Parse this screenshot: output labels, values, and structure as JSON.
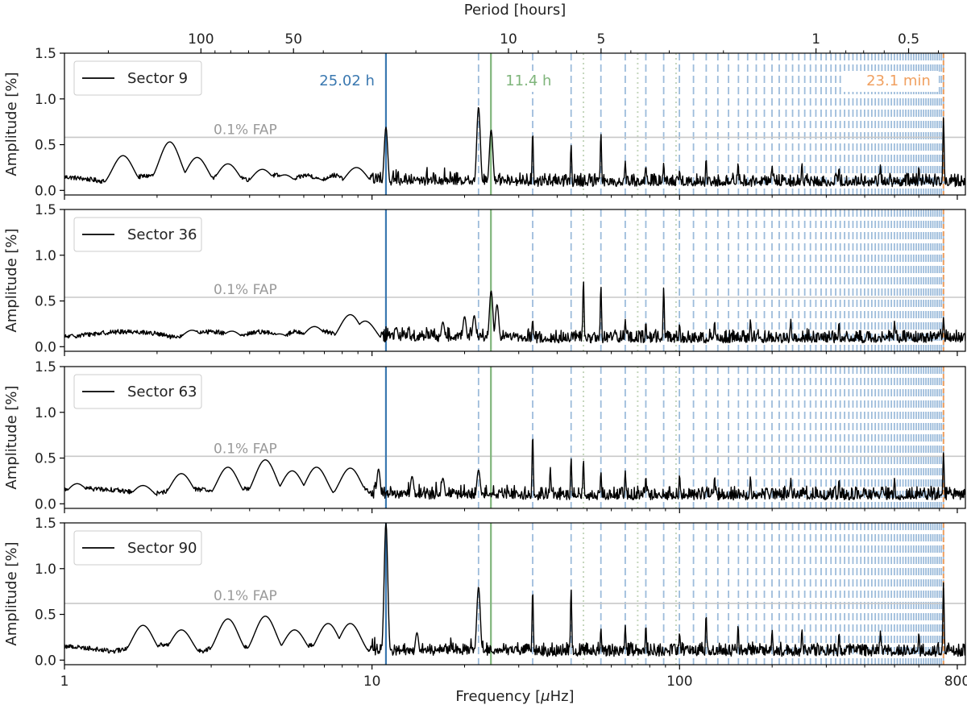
{
  "chart_data": {
    "type": "line",
    "xscale": "log",
    "xlim": [
      1,
      850
    ],
    "ylim": [
      -0.05,
      1.5
    ],
    "xlabel": "Frequency [$\\mu$Hz]",
    "xlabel_parts": {
      "pre": "Frequency [",
      "mu": "μ",
      "post": "Hz]"
    },
    "ylabel": "Amplitude [%]",
    "secondary_xlabel": "Period [hours]",
    "x_ticks": [
      {
        "value": 1,
        "label": "1"
      },
      {
        "value": 10,
        "label": "10"
      },
      {
        "value": 100,
        "label": "100"
      },
      {
        "value": 800,
        "label": "800"
      }
    ],
    "y_ticks": [
      {
        "value": 0,
        "label": "0.0"
      },
      {
        "value": 0.5,
        "label": "0.5"
      },
      {
        "value": 1.0,
        "label": "1.0"
      },
      {
        "value": 1.5,
        "label": "1.5"
      }
    ],
    "period_ticks": [
      {
        "hours": 100,
        "label": "100"
      },
      {
        "hours": 50,
        "label": "50"
      },
      {
        "hours": 10,
        "label": "10"
      },
      {
        "hours": 5,
        "label": "5"
      },
      {
        "hours": 1,
        "label": "1"
      },
      {
        "hours": 0.5,
        "label": "0.5"
      }
    ],
    "fap_label": "0.1% FAP",
    "fundamental": {
      "frequency": 11.1,
      "label": "25.02 h",
      "color": "#3a78b0"
    },
    "second_period": {
      "frequency": 24.36,
      "label": "11.4 h",
      "color": "#7fb57b"
    },
    "fast_period": {
      "frequency": 721.5,
      "label": "23.1 min",
      "color": "#f0a060"
    },
    "harmonic_color": "#9dbcdb",
    "harmonic_orders": {
      "first": 2,
      "last": 65
    },
    "dotted_harmonic_frequencies": [
      48.7,
      73.1,
      97.4
    ],
    "dotted_color": "#c5d6bd",
    "fap_color": "#c8c8c8",
    "line_color": "#000000",
    "series": [
      {
        "name": "Sector 9",
        "fap": 0.58,
        "peaks": [
          [
            1.55,
            0.38
          ],
          [
            2.2,
            0.53
          ],
          [
            2.7,
            0.36
          ],
          [
            3.4,
            0.29
          ],
          [
            4.4,
            0.23
          ],
          [
            5.2,
            0.17
          ],
          [
            6.6,
            0.13
          ],
          [
            8.9,
            0.25
          ],
          [
            11.1,
            0.69
          ],
          [
            22.2,
            0.91
          ],
          [
            24.4,
            0.66
          ],
          [
            33.3,
            0.64
          ],
          [
            44.4,
            0.5
          ],
          [
            55.5,
            0.63
          ],
          [
            66.6,
            0.32
          ],
          [
            77.7,
            0.27
          ],
          [
            88.8,
            0.3
          ],
          [
            100,
            0.22
          ],
          [
            122,
            0.35
          ],
          [
            155,
            0.3
          ],
          [
            200,
            0.27
          ],
          [
            250,
            0.3
          ],
          [
            330,
            0.25
          ],
          [
            450,
            0.28
          ],
          [
            600,
            0.26
          ],
          [
            721.5,
            0.8
          ]
        ]
      },
      {
        "name": "Sector 36",
        "fap": 0.54,
        "peaks": [
          [
            1.8,
            0.13
          ],
          [
            2.6,
            0.18
          ],
          [
            3.5,
            0.17
          ],
          [
            5.0,
            0.14
          ],
          [
            6.5,
            0.22
          ],
          [
            8.5,
            0.35
          ],
          [
            9.5,
            0.28
          ],
          [
            12,
            0.21
          ],
          [
            17,
            0.27
          ],
          [
            20,
            0.33
          ],
          [
            21.5,
            0.34
          ],
          [
            24.4,
            0.61
          ],
          [
            25.5,
            0.46
          ],
          [
            33.3,
            0.3
          ],
          [
            48.7,
            0.73
          ],
          [
            55.5,
            0.67
          ],
          [
            66.6,
            0.3
          ],
          [
            77.7,
            0.27
          ],
          [
            88.8,
            0.65
          ],
          [
            100,
            0.25
          ],
          [
            130,
            0.28
          ],
          [
            170,
            0.3
          ],
          [
            230,
            0.3
          ],
          [
            330,
            0.27
          ],
          [
            500,
            0.28
          ],
          [
            721.5,
            0.32
          ]
        ]
      },
      {
        "name": "Sector 63",
        "fap": 0.52,
        "peaks": [
          [
            1.1,
            0.22
          ],
          [
            1.8,
            0.2
          ],
          [
            2.4,
            0.33
          ],
          [
            3.4,
            0.4
          ],
          [
            4.5,
            0.48
          ],
          [
            5.5,
            0.36
          ],
          [
            6.6,
            0.4
          ],
          [
            8.5,
            0.39
          ],
          [
            10.5,
            0.38
          ],
          [
            13.5,
            0.3
          ],
          [
            17,
            0.28
          ],
          [
            22.2,
            0.37
          ],
          [
            33.3,
            0.76
          ],
          [
            38,
            0.4
          ],
          [
            44.4,
            0.5
          ],
          [
            48.7,
            0.48
          ],
          [
            55.5,
            0.35
          ],
          [
            66.6,
            0.36
          ],
          [
            77.7,
            0.3
          ],
          [
            100,
            0.32
          ],
          [
            130,
            0.3
          ],
          [
            170,
            0.3
          ],
          [
            230,
            0.28
          ],
          [
            330,
            0.27
          ],
          [
            500,
            0.28
          ],
          [
            721.5,
            0.56
          ]
        ]
      },
      {
        "name": "Sector 90",
        "fap": 0.62,
        "peaks": [
          [
            1.8,
            0.38
          ],
          [
            2.4,
            0.33
          ],
          [
            3.4,
            0.45
          ],
          [
            4.5,
            0.48
          ],
          [
            5.6,
            0.33
          ],
          [
            7.2,
            0.4
          ],
          [
            8.5,
            0.4
          ],
          [
            11.1,
            1.5
          ],
          [
            14,
            0.3
          ],
          [
            22.2,
            0.8
          ],
          [
            33.3,
            0.77
          ],
          [
            44.4,
            0.78
          ],
          [
            55.5,
            0.35
          ],
          [
            66.6,
            0.38
          ],
          [
            77.7,
            0.38
          ],
          [
            100,
            0.3
          ],
          [
            122,
            0.5
          ],
          [
            155,
            0.38
          ],
          [
            200,
            0.33
          ],
          [
            250,
            0.34
          ],
          [
            330,
            0.3
          ],
          [
            450,
            0.32
          ],
          [
            600,
            0.3
          ],
          [
            721.5,
            0.85
          ]
        ]
      }
    ]
  }
}
